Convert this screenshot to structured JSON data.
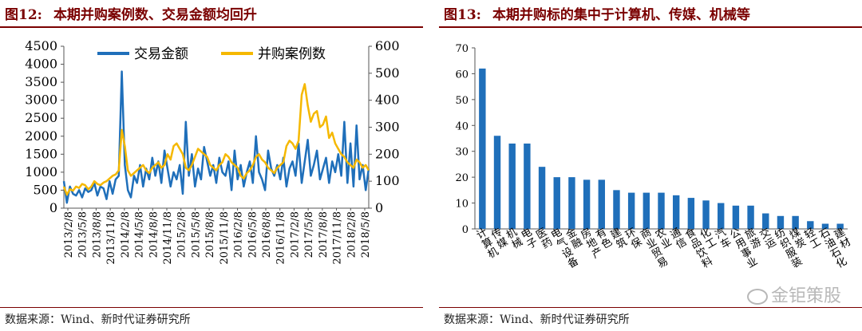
{
  "left": {
    "fig_label": "图12:",
    "fig_title": "本期并购案例数、交易金额均回升",
    "source": "数据来源：Wind、新时代证券研究所"
  },
  "right": {
    "fig_label": "图13:",
    "fig_title": "本期并购标的集中于计算机、传媒、机械等",
    "source": "数据来源：Wind、新时代证券研究所"
  },
  "watermark": "金钜策股",
  "colors": {
    "blue": "#1f6fba",
    "gold": "#f5b800",
    "bar": "#1f6fba",
    "title": "#7a0000"
  },
  "chart_data": [
    {
      "type": "line",
      "title": "本期并购案例数、交易金额均回升",
      "legend_position": "top",
      "x_tick_labels": [
        "2013/2/8",
        "2013/5/8",
        "2013/8/8",
        "2013/11/8",
        "2014/2/8",
        "2014/5/8",
        "2014/8/8",
        "2014/11/8",
        "2015/2/8",
        "2015/5/8",
        "2015/8/8",
        "2015/11/8",
        "2016/2/8",
        "2016/5/8",
        "2016/8/8",
        "2016/11/8",
        "2017/2/8",
        "2017/5/8",
        "2017/8/8",
        "2017/11/8",
        "2018/2/8",
        "2018/5/8"
      ],
      "y_left": {
        "ticks": [
          0,
          500,
          1000,
          1500,
          2000,
          2500,
          3000,
          3500,
          4000,
          4500
        ],
        "ylim": [
          0,
          4500
        ]
      },
      "y_right": {
        "ticks": [
          0,
          100,
          200,
          300,
          400,
          500,
          600
        ],
        "ylim": [
          0,
          600
        ]
      },
      "series": [
        {
          "name": "交易金额",
          "axis": "left",
          "color": "#1f6fba",
          "values": [
            750,
            150,
            600,
            400,
            350,
            500,
            300,
            550,
            450,
            500,
            700,
            350,
            600,
            550,
            250,
            750,
            400,
            800,
            900,
            3800,
            1200,
            500,
            300,
            900,
            700,
            1200,
            600,
            1100,
            800,
            1400,
            900,
            1300,
            700,
            1600,
            1100,
            600,
            1000,
            800,
            1200,
            400,
            2400,
            900,
            1500,
            600,
            1100,
            800,
            1700,
            1300,
            900,
            1200,
            700,
            1400,
            1000,
            900,
            1300,
            500,
            1600,
            800,
            1200,
            600,
            1000,
            1300,
            700,
            2000,
            1000,
            800,
            500,
            1600,
            1100,
            900,
            1200,
            800,
            1400,
            600,
            1100,
            1300,
            900,
            1800,
            700,
            1300,
            1900,
            900,
            1200,
            1600,
            800,
            1100,
            1400,
            700,
            1300,
            1000,
            1500,
            900,
            2400,
            700,
            1800,
            600,
            2300,
            800,
            1200,
            500,
            1100
          ]
        },
        {
          "name": "并购案例数",
          "axis": "right",
          "color": "#f5b800",
          "values": [
            80,
            50,
            70,
            65,
            80,
            75,
            90,
            85,
            70,
            80,
            100,
            90,
            85,
            95,
            100,
            110,
            120,
            125,
            140,
            290,
            230,
            140,
            120,
            130,
            140,
            150,
            160,
            140,
            130,
            150,
            160,
            170,
            150,
            160,
            200,
            180,
            230,
            240,
            220,
            200,
            150,
            140,
            160,
            190,
            220,
            210,
            200,
            190,
            160,
            150,
            140,
            160,
            170,
            200,
            190,
            170,
            160,
            150,
            120,
            110,
            130,
            140,
            160,
            190,
            200,
            180,
            170,
            150,
            140,
            130,
            150,
            160,
            170,
            230,
            250,
            240,
            220,
            250,
            420,
            460,
            380,
            320,
            350,
            360,
            300,
            310,
            340,
            260,
            280,
            240,
            220,
            200,
            190,
            170,
            160,
            150,
            180,
            170,
            150,
            160,
            140
          ]
        }
      ]
    },
    {
      "type": "bar",
      "title": "本期并购标的集中于计算机、传媒、机械等",
      "categories": [
        "计算机",
        "传媒",
        "机械",
        "电子",
        "医药",
        "电气设备",
        "金融",
        "房地产",
        "有色",
        "建筑",
        "环保",
        "商业贸易",
        "农业",
        "通信",
        "食品饮料",
        "化工",
        "汽车",
        "公用事业",
        "旅游",
        "交运",
        "纺织服装",
        "煤炭",
        "轻工",
        "石油石化",
        "建材"
      ],
      "values": [
        62,
        36,
        33,
        33,
        24,
        20,
        20,
        19,
        19,
        15,
        14,
        14,
        14,
        13,
        12,
        11,
        10,
        9,
        9,
        6,
        5,
        5,
        3,
        2,
        2
      ],
      "ylim": [
        0,
        70
      ],
      "y_ticks": [
        0,
        10,
        20,
        30,
        40,
        50,
        60,
        70
      ]
    }
  ]
}
